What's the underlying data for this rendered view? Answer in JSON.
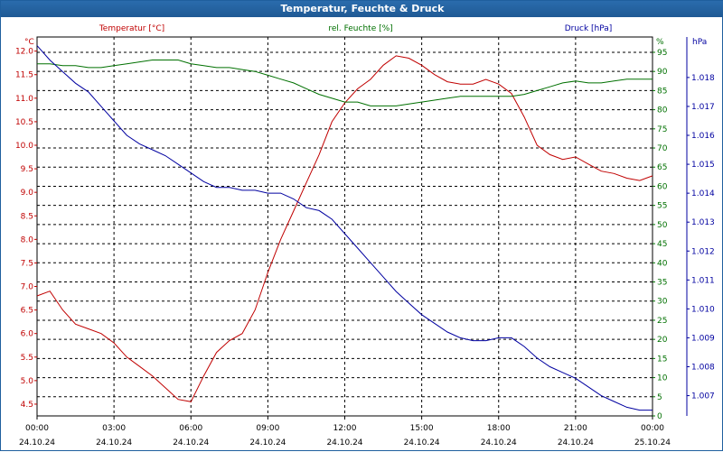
{
  "window": {
    "title": "Temperatur, Feuchte & Druck"
  },
  "colors": {
    "temperature": "#c00000",
    "humidity": "#007000",
    "pressure": "#0000a0",
    "title_bg": "#1f5f9e"
  },
  "chart_data": {
    "type": "line",
    "title": "Temperatur, Feuchte & Druck",
    "x": [
      "00:00",
      "00:30",
      "01:00",
      "01:30",
      "02:00",
      "02:30",
      "03:00",
      "03:30",
      "04:00",
      "04:30",
      "05:00",
      "05:30",
      "06:00",
      "06:30",
      "07:00",
      "07:30",
      "08:00",
      "08:30",
      "09:00",
      "09:30",
      "10:00",
      "10:30",
      "11:00",
      "11:30",
      "12:00",
      "12:30",
      "13:00",
      "13:30",
      "14:00",
      "14:30",
      "15:00",
      "15:30",
      "16:00",
      "16:30",
      "17:00",
      "17:30",
      "18:00",
      "18:30",
      "19:00",
      "19:30",
      "20:00",
      "20:30",
      "21:00",
      "21:30",
      "22:00",
      "22:30",
      "23:00",
      "23:30",
      "24:00"
    ],
    "x_ticks": [
      {
        "time": "00:00",
        "date": "24.10.24"
      },
      {
        "time": "03:00",
        "date": "24.10.24"
      },
      {
        "time": "06:00",
        "date": "24.10.24"
      },
      {
        "time": "09:00",
        "date": "24.10.24"
      },
      {
        "time": "12:00",
        "date": "24.10.24"
      },
      {
        "time": "15:00",
        "date": "24.10.24"
      },
      {
        "time": "18:00",
        "date": "24.10.24"
      },
      {
        "time": "21:00",
        "date": "24.10.24"
      },
      {
        "time": "00:00",
        "date": "25.10.24"
      }
    ],
    "axes": {
      "temperature": {
        "label": "Temperatur [°C]",
        "unit": "°C",
        "ylim": [
          4.25,
          12.3
        ],
        "ticks": [
          "12.0",
          "11.5",
          "11.0",
          "10.5",
          "10.0",
          "9.5",
          "9.0",
          "8.5",
          "8.0",
          "7.5",
          "7.0",
          "6.5",
          "6.0",
          "5.5",
          "5.0",
          "4.5"
        ]
      },
      "humidity": {
        "label": "rel. Feuchte [%]",
        "unit": "%",
        "ylim": [
          0,
          99
        ],
        "ticks": [
          "95",
          "90",
          "85",
          "80",
          "75",
          "70",
          "65",
          "60",
          "55",
          "50",
          "45",
          "40",
          "35",
          "30",
          "25",
          "20",
          "15",
          "10",
          "5",
          "0"
        ]
      },
      "pressure": {
        "label": "Druck [hPa]",
        "unit": "hPa",
        "ylim": [
          1.0063,
          1.0194
        ],
        "ticks": [
          "1.018",
          "1.017",
          "1.016",
          "1.015",
          "1.014",
          "1.013",
          "1.012",
          "1.011",
          "1.010",
          "1.009",
          "1.008",
          "1.007"
        ]
      }
    },
    "grid": true,
    "series": [
      {
        "name": "Temperatur [°C]",
        "axis": "temperature",
        "values": [
          6.8,
          6.9,
          6.5,
          6.2,
          6.1,
          6.0,
          5.8,
          5.5,
          5.3,
          5.1,
          4.85,
          4.6,
          4.55,
          5.1,
          5.6,
          5.85,
          6.0,
          6.5,
          7.3,
          8.0,
          8.6,
          9.2,
          9.8,
          10.5,
          10.9,
          11.2,
          11.4,
          11.7,
          11.9,
          11.85,
          11.7,
          11.5,
          11.35,
          11.3,
          11.3,
          11.4,
          11.3,
          11.1,
          10.6,
          10.0,
          9.8,
          9.7,
          9.75,
          9.6,
          9.45,
          9.4,
          9.3,
          9.25,
          9.35
        ]
      },
      {
        "name": "rel. Feuchte [%]",
        "axis": "humidity",
        "values": [
          92,
          92,
          91.5,
          91.5,
          91,
          91,
          91.5,
          92,
          92.5,
          93,
          93,
          93,
          92,
          91.5,
          91,
          91,
          90.5,
          90,
          89,
          88,
          87,
          85.5,
          84,
          83,
          82,
          82,
          81,
          81,
          81,
          81.5,
          82,
          82.5,
          83,
          83.5,
          83.5,
          83.5,
          83.5,
          83.5,
          84,
          85,
          86,
          87,
          87.5,
          87,
          87,
          87.5,
          88,
          88,
          88
        ]
      },
      {
        "name": "Druck [hPa]",
        "axis": "pressure",
        "values": [
          1.0191,
          1.0186,
          1.0182,
          1.0178,
          1.0175,
          1.017,
          1.0165,
          1.016,
          1.0157,
          1.0155,
          1.0153,
          1.015,
          1.0147,
          1.0144,
          1.0142,
          1.0142,
          1.0141,
          1.0141,
          1.014,
          1.014,
          1.0138,
          1.0135,
          1.0134,
          1.0131,
          1.0126,
          1.0121,
          1.0116,
          1.0111,
          1.0106,
          1.0102,
          1.0098,
          1.0095,
          1.0092,
          1.009,
          1.0089,
          1.0089,
          1.009,
          1.009,
          1.0087,
          1.0083,
          1.008,
          1.0078,
          1.0076,
          1.0073,
          1.007,
          1.0068,
          1.0066,
          1.0065,
          1.0065
        ]
      }
    ]
  }
}
